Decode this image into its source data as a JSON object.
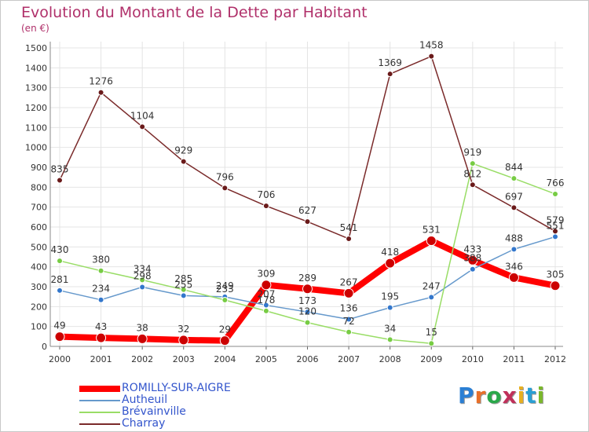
{
  "header": {
    "title": "Evolution du Montant de la Dette par Habitant",
    "unit": "(en €)"
  },
  "brand": {
    "letters": [
      "P",
      "r",
      "o",
      "x",
      "i",
      "t",
      "i"
    ],
    "colors": [
      "#2a7fd4",
      "#e8702a",
      "#2aa84a",
      "#c0305a",
      "#e8b020",
      "#2a9fd4",
      "#7ab82a"
    ]
  },
  "chart_data": {
    "type": "line",
    "title": "Evolution du Montant de la Dette par Habitant",
    "ylabel": "(en €)",
    "xlabel": "",
    "ylim": [
      0,
      1500
    ],
    "yticks": [
      0,
      100,
      200,
      300,
      400,
      500,
      600,
      700,
      800,
      900,
      1000,
      1100,
      1200,
      1300,
      1400,
      1500
    ],
    "grid": true,
    "legend_position": "bottom-left",
    "categories": [
      "2000",
      "2001",
      "2002",
      "2003",
      "2004",
      "2005",
      "2006",
      "2007",
      "2008",
      "2009",
      "2010",
      "2011",
      "2012"
    ],
    "series": [
      {
        "name": "ROMILLY-SUR-AIGRE",
        "color": "#ff0000",
        "dot": "#cc0000",
        "width": 8,
        "values": [
          49,
          43,
          38,
          32,
          29,
          309,
          289,
          267,
          418,
          531,
          433,
          346,
          305
        ],
        "labels": [
          49,
          43,
          38,
          32,
          29,
          309,
          289,
          267,
          418,
          531,
          433,
          346,
          305
        ]
      },
      {
        "name": "Autheuil",
        "color": "#6699cc",
        "dot": "#3377cc",
        "width": 1.5,
        "values": [
          281,
          234,
          298,
          255,
          249,
          207,
          173,
          136,
          195,
          247,
          388,
          488,
          551
        ],
        "labels": [
          281,
          234,
          298,
          255,
          249,
          207,
          173,
          136,
          195,
          247,
          388,
          488,
          551
        ]
      },
      {
        "name": "Brévainville",
        "color": "#99dd66",
        "dot": "#77cc44",
        "width": 1.5,
        "values": [
          430,
          380,
          334,
          285,
          233,
          178,
          120,
          72,
          34,
          15,
          919,
          844,
          766
        ],
        "labels": [
          430,
          380,
          334,
          285,
          233,
          178,
          120,
          72,
          34,
          15,
          919,
          844,
          766
        ]
      },
      {
        "name": "Charray",
        "color": "#7a2a2a",
        "dot": "#6a1a1a",
        "width": 1.5,
        "values": [
          835,
          1276,
          1104,
          929,
          796,
          706,
          627,
          541,
          1369,
          1458,
          812,
          697,
          579
        ],
        "labels": [
          835,
          1276,
          1104,
          929,
          796,
          706,
          627,
          541,
          1369,
          1458,
          812,
          697,
          579
        ]
      }
    ]
  }
}
